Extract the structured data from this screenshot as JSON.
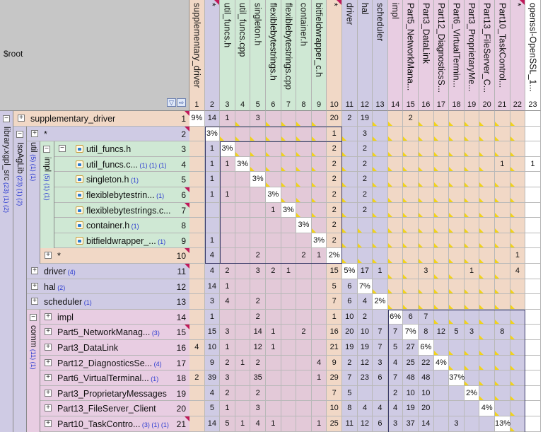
{
  "root": {
    "label": "$root"
  },
  "filter_icons": [
    "filter-icon",
    "refresh-icon"
  ],
  "columns": [
    {
      "n": "1",
      "name": "supplementary_driver",
      "color": "#f1d8c6"
    },
    {
      "n": "2",
      "name": "*",
      "color": "#cfcbe4",
      "flag": true
    },
    {
      "n": "3",
      "name": "util_funcs.h",
      "color": "#cfe8d4"
    },
    {
      "n": "4",
      "name": "util_funcs.cpp",
      "color": "#cfe8d4"
    },
    {
      "n": "5",
      "name": "singleton.h",
      "color": "#cfe8d4"
    },
    {
      "n": "6",
      "name": "flexiblebytestrings.h",
      "color": "#cfe8d4"
    },
    {
      "n": "7",
      "name": "flexiblebytestrings.cpp",
      "color": "#cfe8d4"
    },
    {
      "n": "8",
      "name": "container.h",
      "color": "#cfe8d4"
    },
    {
      "n": "9",
      "name": "bitfieldwrapper_c.h",
      "color": "#cfe8d4"
    },
    {
      "n": "10",
      "name": "*",
      "color": "#f1d8c6",
      "flag": true
    },
    {
      "n": "11",
      "name": "driver",
      "color": "#cfcbe4"
    },
    {
      "n": "12",
      "name": "hal",
      "color": "#cfcbe4"
    },
    {
      "n": "13",
      "name": "scheduler",
      "color": "#cfcbe4"
    },
    {
      "n": "14",
      "name": "impl",
      "color": "#e8cde2"
    },
    {
      "n": "15",
      "name": "Part5_NetworkMana...",
      "color": "#e8cde2"
    },
    {
      "n": "16",
      "name": "Part3_DataLink",
      "color": "#e8cde2"
    },
    {
      "n": "17",
      "name": "Part12_DiagnosticsS...",
      "color": "#e8cde2"
    },
    {
      "n": "18",
      "name": "Part6_VirtualTermin...",
      "color": "#e8cde2"
    },
    {
      "n": "19",
      "name": "Part3_ProprietaryMe...",
      "color": "#e8cde2"
    },
    {
      "n": "20",
      "name": "Part13_FileServer_C...",
      "color": "#e8cde2"
    },
    {
      "n": "21",
      "name": "Part10_TaskControl...",
      "color": "#e8cde2"
    },
    {
      "n": "22",
      "name": "*",
      "color": "#e8cde2",
      "flag": true
    },
    {
      "n": "23",
      "name": "openssl-OpenSSL_1...",
      "color": "#ffffff"
    }
  ],
  "groups": [
    {
      "name": "library.xgpl_src",
      "counts": "(23) (1) (2)",
      "toggle": "−",
      "color": "#cfcbe4"
    },
    {
      "name": "IsoAgLib",
      "counts": "(23) (1) (2)",
      "toggle": "−",
      "color": "#cfcbe4"
    },
    {
      "name": "util",
      "counts": "(5) (1) (1)",
      "toggle": "−",
      "color": "#cfcbe4"
    },
    {
      "name": "impl",
      "counts": "(5) (1) (1)",
      "toggle": "−",
      "color": "#cfe8d4"
    },
    {
      "name": "comm",
      "counts": "(11) (1)",
      "toggle": "−",
      "color": "#e8cde2"
    }
  ],
  "rows": [
    {
      "n": "1",
      "name": "supplementary_driver",
      "toggle": "+",
      "color": "#f1d8c6",
      "flag": true
    },
    {
      "n": "2",
      "name": "*",
      "toggle": "+",
      "color": "#cfcbe4",
      "flag": true
    },
    {
      "n": "3",
      "name": "util_funcs.h",
      "toggle": "−",
      "color": "#cfe8d4",
      "file": true
    },
    {
      "n": "4",
      "name": "util_funcs.c...",
      "counts": "(1) (1) (1)",
      "color": "#cfe8d4",
      "file": true
    },
    {
      "n": "5",
      "name": "singleton.h",
      "counts": "(1)",
      "color": "#cfe8d4",
      "file": true
    },
    {
      "n": "6",
      "name": "flexiblebytestrin...",
      "counts": "(1)",
      "color": "#cfe8d4",
      "file": true,
      "flag": true
    },
    {
      "n": "7",
      "name": "flexiblebytestrings.c...",
      "color": "#cfe8d4",
      "file": true,
      "flag": true
    },
    {
      "n": "8",
      "name": "container.h",
      "counts": "(1)",
      "color": "#cfe8d4",
      "file": true
    },
    {
      "n": "9",
      "name": "bitfieldwrapper_...",
      "counts": "(1)",
      "color": "#cfe8d4",
      "file": true
    },
    {
      "n": "10",
      "name": "*",
      "toggle": "+",
      "color": "#f1d8c6",
      "flag": true
    },
    {
      "n": "11",
      "name": "driver",
      "counts": "(4)",
      "toggle": "+",
      "color": "#cfcbe4",
      "flag": true
    },
    {
      "n": "12",
      "name": "hal",
      "counts": "(2)",
      "toggle": "+",
      "color": "#cfcbe4"
    },
    {
      "n": "13",
      "name": "scheduler",
      "counts": "(1)",
      "toggle": "+",
      "color": "#cfcbe4"
    },
    {
      "n": "14",
      "name": "impl",
      "toggle": "+",
      "color": "#e8cde2"
    },
    {
      "n": "15",
      "name": "Part5_NetworkManag...",
      "counts": "(3)",
      "toggle": "+",
      "color": "#e8cde2",
      "flag": true
    },
    {
      "n": "16",
      "name": "Part3_DataLink",
      "toggle": "+",
      "color": "#e8cde2"
    },
    {
      "n": "17",
      "name": "Part12_DiagnosticsSe...",
      "counts": "(4)",
      "toggle": "+",
      "color": "#e8cde2"
    },
    {
      "n": "18",
      "name": "Part6_VirtualTerminal...",
      "counts": "(1)",
      "toggle": "+",
      "color": "#e8cde2"
    },
    {
      "n": "19",
      "name": "Part3_ProprietaryMessages",
      "toggle": "+",
      "color": "#e8cde2"
    },
    {
      "n": "20",
      "name": "Part13_FileServer_Client",
      "toggle": "+",
      "color": "#e8cde2"
    },
    {
      "n": "21",
      "name": "Part10_TaskContro...",
      "counts": "(3) (1) (1)",
      "toggle": "+",
      "color": "#e8cde2",
      "flag": true
    }
  ],
  "matrix": [
    [
      "9%",
      "14",
      "1",
      "",
      "3",
      "",
      "",
      "",
      "",
      "20",
      "2",
      "19",
      "",
      "",
      "2",
      "",
      "",
      "",
      "",
      "",
      "",
      "",
      ""
    ],
    [
      "",
      "3%",
      "",
      "",
      "",
      "",
      "",
      "",
      "",
      "1",
      "",
      "3",
      "",
      "",
      "",
      "",
      "",
      "",
      "",
      "",
      "",
      "",
      ""
    ],
    [
      "",
      "1",
      "3%",
      "",
      "",
      "",
      "",
      "",
      "",
      "2",
      "",
      "2",
      "",
      "",
      "",
      "",
      "",
      "",
      "",
      "",
      "",
      "",
      ""
    ],
    [
      "",
      "1",
      "1",
      "3%",
      "",
      "",
      "",
      "",
      "",
      "2",
      "",
      "2",
      "",
      "",
      "",
      "",
      "",
      "",
      "",
      "",
      "1",
      "",
      "1"
    ],
    [
      "",
      "1",
      "",
      "",
      "3%",
      "",
      "",
      "",
      "",
      "2",
      "",
      "2",
      "",
      "",
      "",
      "",
      "",
      "",
      "",
      "",
      "",
      "",
      ""
    ],
    [
      "",
      "1",
      "1",
      "",
      "",
      "3%",
      "",
      "",
      "",
      "2",
      "",
      "2",
      "",
      "",
      "",
      "",
      "",
      "",
      "",
      "",
      "",
      "",
      ""
    ],
    [
      "",
      "",
      "",
      "",
      "",
      "1",
      "3%",
      "",
      "",
      "2",
      "",
      "2",
      "",
      "",
      "",
      "",
      "",
      "",
      "",
      "",
      "",
      "",
      ""
    ],
    [
      "",
      "",
      "",
      "",
      "",
      "",
      "",
      "3%",
      "",
      "2",
      "",
      "",
      "",
      "",
      "",
      "",
      "",
      "",
      "",
      "",
      "",
      "",
      ""
    ],
    [
      "",
      "1",
      "",
      "",
      "",
      "",
      "",
      "",
      "3%",
      "2",
      "",
      "",
      "",
      "",
      "",
      "",
      "",
      "",
      "",
      "",
      "",
      "",
      ""
    ],
    [
      "",
      "4",
      "",
      "",
      "2",
      "",
      "",
      "2",
      "1",
      "2%",
      "",
      "",
      "",
      "",
      "",
      "",
      "",
      "",
      "",
      "",
      "",
      "1",
      ""
    ],
    [
      "",
      "4",
      "2",
      "",
      "3",
      "2",
      "1",
      "",
      "",
      "15",
      "5%",
      "17",
      "1",
      "",
      "",
      "3",
      "",
      "",
      "1",
      "",
      "",
      "4",
      ""
    ],
    [
      "",
      "14",
      "1",
      "",
      "",
      "",
      "",
      "",
      "",
      "5",
      "6",
      "7%",
      "",
      "",
      "",
      "",
      "",
      "",
      "",
      "",
      "",
      "",
      ""
    ],
    [
      "",
      "3",
      "4",
      "",
      "2",
      "",
      "",
      "",
      "",
      "7",
      "6",
      "4",
      "2%",
      "",
      "",
      "",
      "",
      "",
      "",
      "",
      "",
      "",
      ""
    ],
    [
      "",
      "1",
      "",
      "",
      "2",
      "",
      "",
      "",
      "",
      "1",
      "10",
      "2",
      "",
      "6%",
      "6",
      "7",
      "",
      "",
      "",
      "",
      "",
      "",
      ""
    ],
    [
      "",
      "15",
      "3",
      "",
      "14",
      "1",
      "",
      "2",
      "",
      "16",
      "20",
      "10",
      "7",
      "7",
      "7%",
      "8",
      "12",
      "5",
      "3",
      "",
      "8",
      "",
      ""
    ],
    [
      "4",
      "10",
      "1",
      "",
      "12",
      "1",
      "",
      "",
      "",
      "21",
      "19",
      "19",
      "7",
      "5",
      "27",
      "6%",
      "",
      "",
      "",
      "",
      "",
      "",
      ""
    ],
    [
      "",
      "9",
      "2",
      "1",
      "2",
      "",
      "",
      "",
      "4",
      "9",
      "2",
      "12",
      "3",
      "4",
      "25",
      "22",
      "4%",
      "",
      "",
      "",
      "",
      "",
      ""
    ],
    [
      "2",
      "39",
      "3",
      "",
      "35",
      "",
      "",
      "",
      "1",
      "29",
      "7",
      "23",
      "6",
      "7",
      "48",
      "48",
      "",
      "37%",
      "",
      "",
      "",
      "",
      ""
    ],
    [
      "",
      "4",
      "2",
      "",
      "2",
      "",
      "",
      "",
      "",
      "7",
      "5",
      "",
      "",
      "2",
      "10",
      "10",
      "",
      "",
      "2%",
      "",
      "",
      "",
      ""
    ],
    [
      "",
      "5",
      "1",
      "",
      "3",
      "",
      "",
      "",
      "",
      "10",
      "8",
      "4",
      "4",
      "4",
      "19",
      "20",
      "",
      "",
      "",
      "4%",
      "",
      "",
      ""
    ],
    [
      "",
      "14",
      "5",
      "1",
      "4",
      "1",
      "",
      "",
      "1",
      "25",
      "11",
      "12",
      "6",
      "3",
      "37",
      "14",
      "",
      "3",
      "",
      "",
      "13%",
      "",
      ""
    ]
  ]
}
